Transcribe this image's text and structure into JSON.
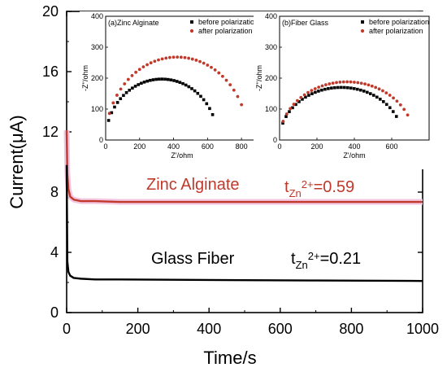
{
  "chart_data": [
    {
      "type": "line",
      "xlabel": "Time/s",
      "ylabel": "Current(μA)",
      "xlim": [
        0,
        1000
      ],
      "ylim": [
        0,
        20
      ],
      "xticks": [
        "0",
        "200",
        "400",
        "600",
        "800",
        "1000"
      ],
      "yticks": [
        "0",
        "4",
        "8",
        "12",
        "16",
        "20"
      ],
      "series": [
        {
          "name": "Zinc Alginate",
          "color": "#c0392b",
          "x": [
            0,
            2,
            5,
            10,
            20,
            40,
            80,
            150,
            300,
            500,
            700,
            1000
          ],
          "y": [
            12.1,
            9.2,
            8.2,
            7.7,
            7.5,
            7.4,
            7.4,
            7.35,
            7.35,
            7.35,
            7.35,
            7.35
          ]
        },
        {
          "name": "Glass Fiber",
          "color": "#000000",
          "x": [
            0,
            2,
            5,
            10,
            20,
            40,
            80,
            150,
            300,
            500,
            700,
            1000
          ],
          "y": [
            9.8,
            3.4,
            2.7,
            2.45,
            2.3,
            2.25,
            2.2,
            2.2,
            2.18,
            2.15,
            2.13,
            2.1
          ]
        }
      ],
      "annotations": [
        {
          "label": "Zinc Alginate",
          "t_main": "t",
          "t_sub": "Zn",
          "t_sup": "2+",
          "t_value": "=0.59",
          "color": "#c0392b"
        },
        {
          "label": "Glass Fiber",
          "t_main": "t",
          "t_sub": "Zn",
          "t_sup": "2+",
          "t_value": "=0.21",
          "color": "#000000"
        }
      ]
    },
    {
      "type": "scatter",
      "title": "(a)Zinc Alginate",
      "xlabel": "Z'/ohm",
      "ylabel": "-Z''/ohm",
      "xlim": [
        0,
        900
      ],
      "ylim": [
        0,
        400
      ],
      "xticks": [
        "0",
        "200",
        "400",
        "600",
        "800"
      ],
      "yticks": [
        "0",
        "100",
        "200",
        "300",
        "400"
      ],
      "legend": "top-right",
      "series": [
        {
          "name": "before polarization",
          "color": "#000000",
          "marker": "square",
          "x0": 0,
          "xmax": 630,
          "center": 330,
          "ry": 197
        },
        {
          "name": "after polarization",
          "color": "#c0392b",
          "marker": "circle",
          "x0": 0,
          "xmax": 800,
          "center": 420,
          "ry": 268
        }
      ]
    },
    {
      "type": "scatter",
      "title": "(b)Fiber Glass",
      "xlabel": "Z'/ohm",
      "ylabel": "-Z''/ohm",
      "xlim": [
        0,
        800
      ],
      "ylim": [
        0,
        400
      ],
      "xticks": [
        "0",
        "200",
        "400",
        "600"
      ],
      "yticks": [
        "0",
        "100",
        "200",
        "300",
        "400"
      ],
      "legend": "top-right",
      "series": [
        {
          "name": "before polarization",
          "color": "#000000",
          "marker": "square",
          "x0": 0,
          "xmax": 625,
          "center": 330,
          "ry": 170
        },
        {
          "name": "after polarization",
          "color": "#c0392b",
          "marker": "circle",
          "x0": 0,
          "xmax": 685,
          "center": 360,
          "ry": 188
        }
      ]
    }
  ]
}
